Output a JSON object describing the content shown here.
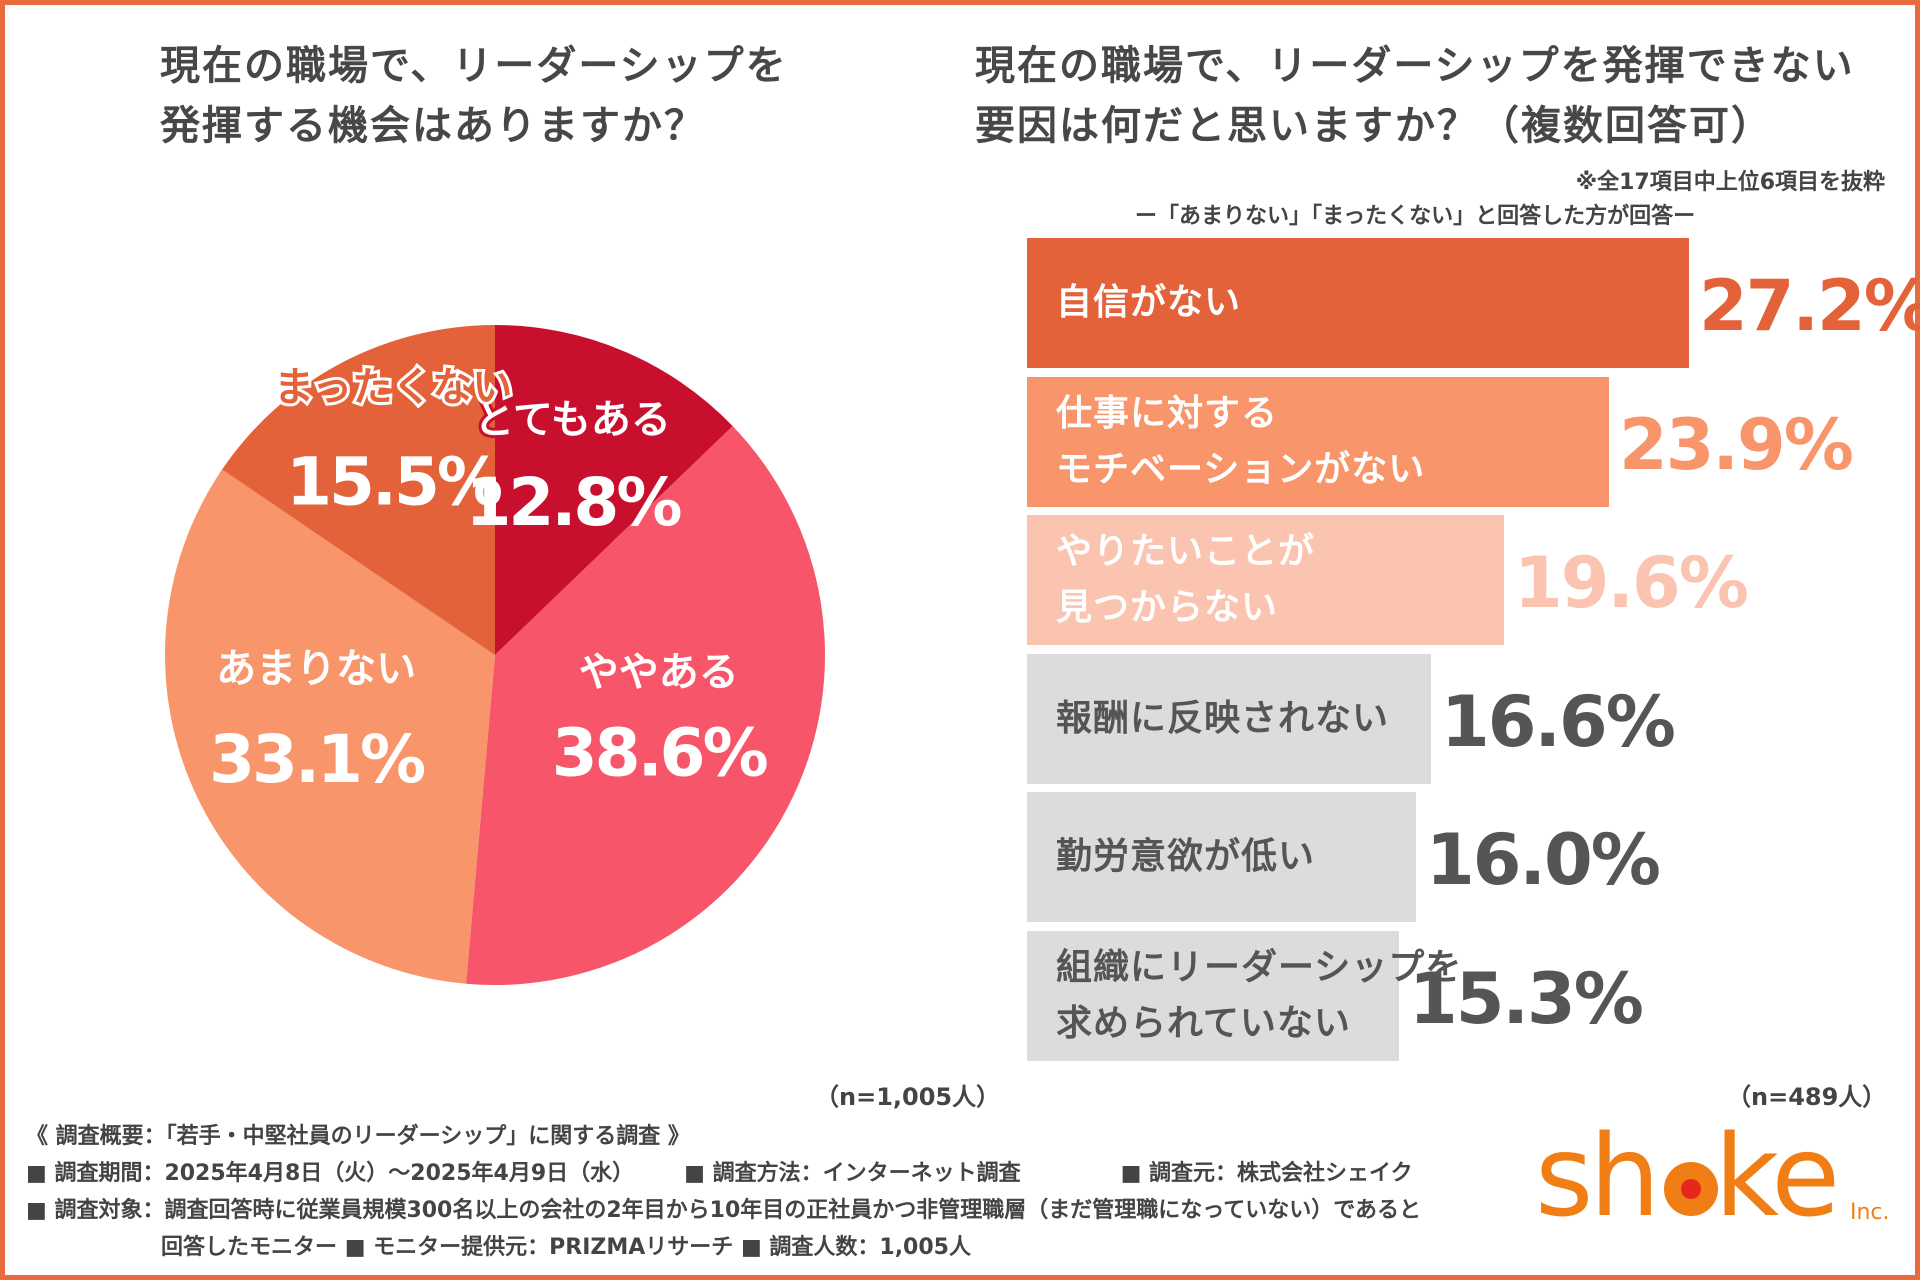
{
  "pie": {
    "title_lines": [
      "現在の職場で、リーダーシップを",
      "発揮する機会はありますか？"
    ],
    "n": "（n=1,005人）"
  },
  "bar": {
    "title_lines": [
      "現在の職場で、リーダーシップを発揮できない",
      "要因は何だと思いますか？（複数回答可）"
    ],
    "note": "※全17項目中上位6項目を抜粋",
    "subnote": "ー「あまりない」「まったくない」と回答した方が回答ー",
    "n": "（n=489人）"
  },
  "chart_data": [
    {
      "type": "pie",
      "title": "現在の職場で、リーダーシップを発揮する機会はありますか？",
      "slices": [
        {
          "label": "とてもある",
          "value": 12.8,
          "value_label": "12.8%",
          "color": "#c8102e",
          "label_color": "#ffffff",
          "outline": "#c8102e"
        },
        {
          "label": "ややある",
          "value": 38.6,
          "value_label": "38.6%",
          "color": "#f7566a",
          "label_color": "#ffffff",
          "outline": null
        },
        {
          "label": "あまりない",
          "value": 33.1,
          "value_label": "33.1%",
          "color": "#f8956a",
          "label_color": "#ffffff",
          "outline": null
        },
        {
          "label": "まったくない",
          "value": 15.5,
          "value_label": "15.5%",
          "color": "#e4623a",
          "label_color": "#e4623a",
          "outline": "#ffffff"
        }
      ],
      "start": "12 o'clock",
      "direction": "clockwise"
    },
    {
      "type": "bar",
      "orientation": "horizontal",
      "title": "現在の職場で、リーダーシップを発揮できない要因は何だと思いますか？（複数回答可）",
      "categories": [
        [
          "自信がない"
        ],
        [
          "仕事に対する",
          "モチベーションがない"
        ],
        [
          "やりたいことが",
          "見つからない"
        ],
        [
          "報酬に反映されない"
        ],
        [
          "勤労意欲が低い"
        ],
        [
          "組織にリーダーシップを",
          "求められていない"
        ]
      ],
      "values": [
        27.2,
        23.9,
        19.6,
        16.6,
        16.0,
        15.3
      ],
      "value_labels": [
        "27.2%",
        "23.9%",
        "19.6%",
        "16.6%",
        "16.0%",
        "15.3%"
      ],
      "bar_colors": [
        "#e4623a",
        "#f8956a",
        "#fbc4b0",
        "#dcdcdc",
        "#dcdcdc",
        "#dcdcdc"
      ],
      "label_colors": [
        "#ffffff",
        "#ffffff",
        "#ffffff",
        "#555555",
        "#555555",
        "#555555"
      ],
      "value_colors": [
        "#e4623a",
        "#f8956a",
        "#fbc4b0",
        "#555555",
        "#555555",
        "#555555"
      ],
      "xlim": [
        0,
        27.2
      ]
    }
  ],
  "footer": {
    "heading": "《 調査概要：「若手・中堅社員のリーダーシップ」に関する調査 》",
    "period": "■ 調査期間：2025年4月8日（火）～2025年4月9日（水）",
    "method": "■ 調査方法：インターネット調査",
    "source": "■ 調査元：株式会社シェイク",
    "target": "■ 調査対象：調査回答時に従業員規模300名以上の会社の2年目から10年目の正社員かつ非管理職層（まだ管理職になっていない）であると",
    "target_cont": "回答したモニター",
    "monitor": "■ モニター提供元：PRIZMAリサーチ",
    "count": "■ 調査人数：1,005人"
  },
  "logo": {
    "text_a": "sh",
    "text_b": "ke",
    "inc": "Inc.",
    "colors": {
      "brand": "#f07e14",
      "dot": "#e5271c"
    }
  }
}
